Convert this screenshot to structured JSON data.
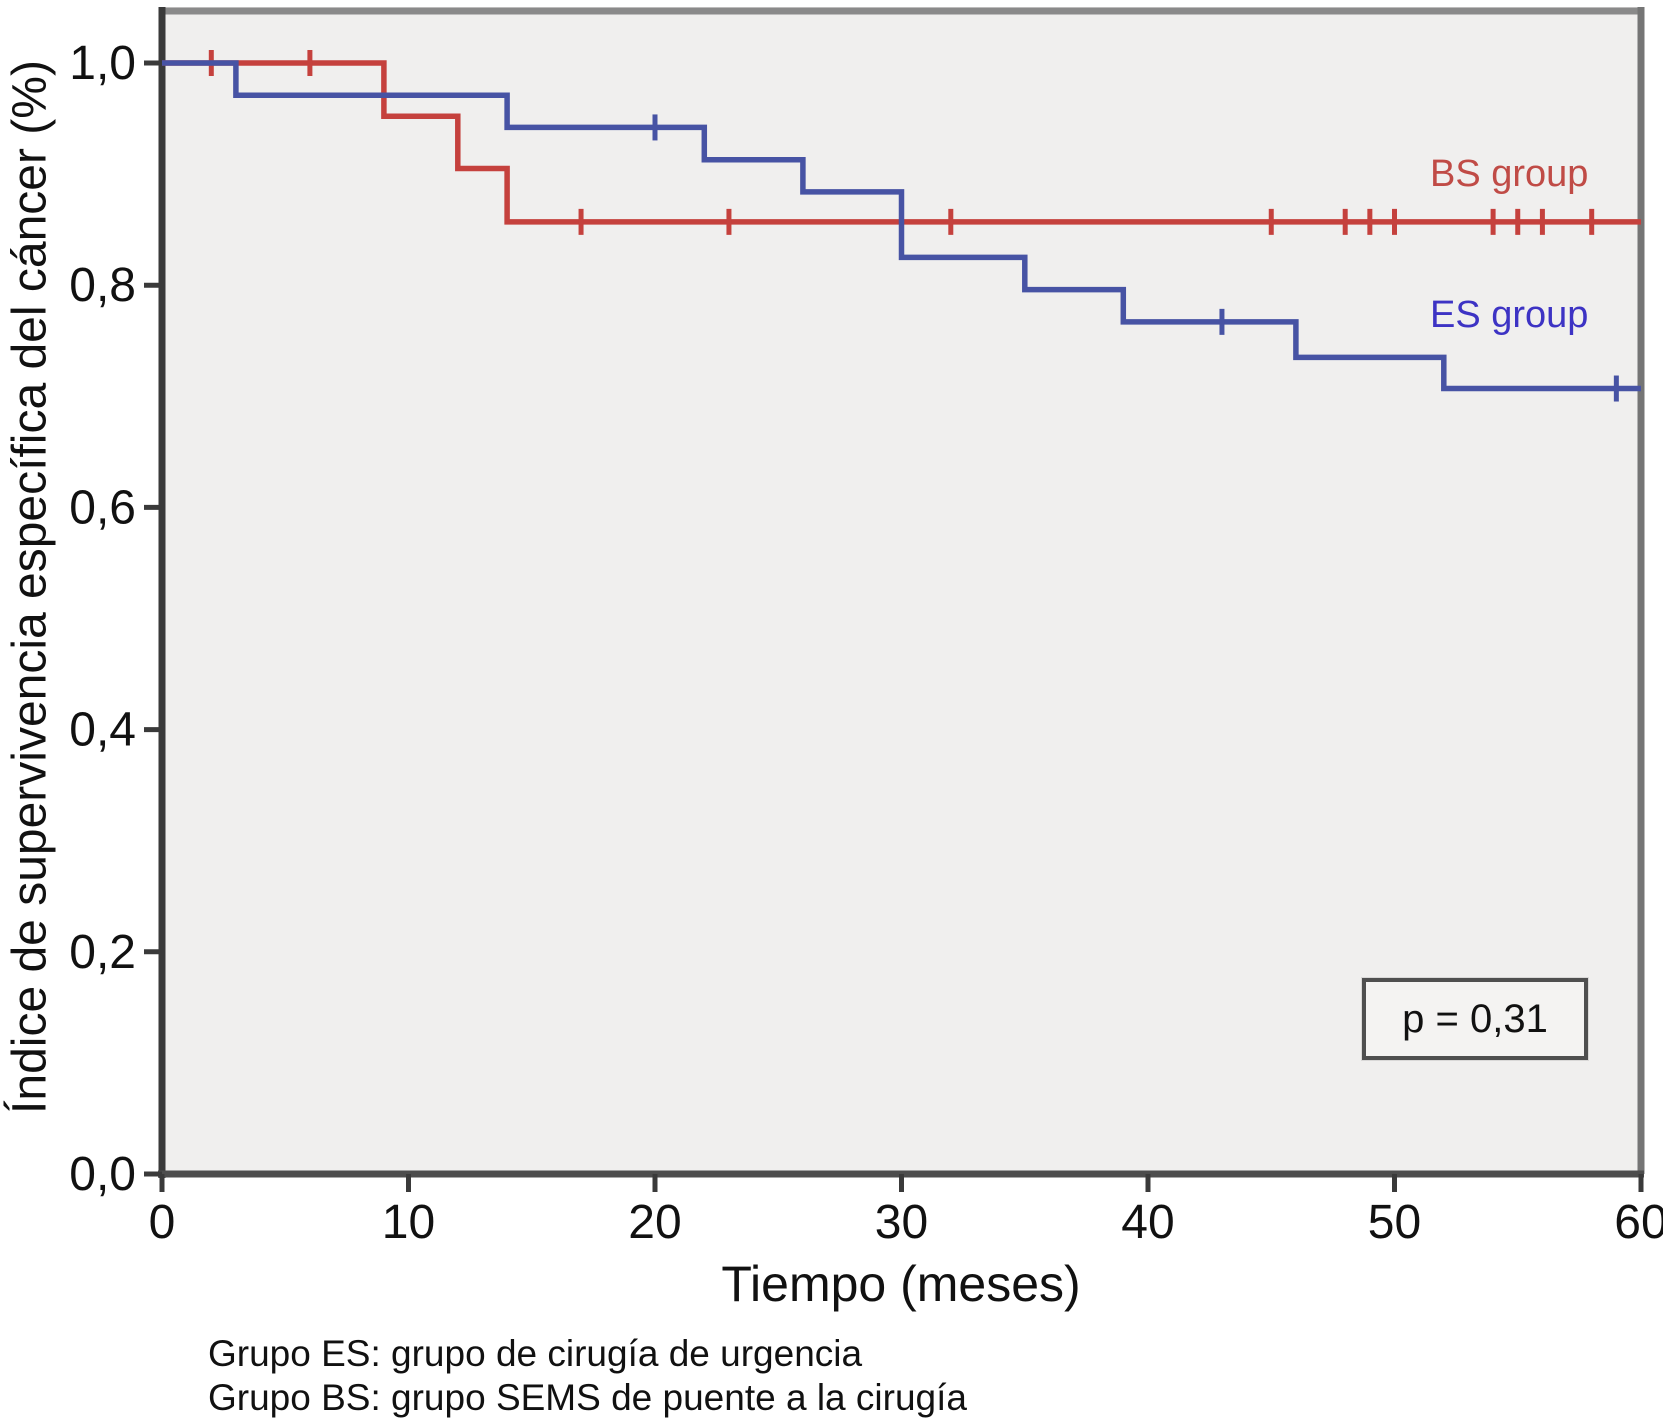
{
  "chart_data": {
    "type": "line",
    "subtype": "kaplan-meier-step-survival",
    "title": "",
    "xlabel": "Tiempo (meses)",
    "ylabel": "Índice de supervivencia específica del cáncer (%)",
    "xlim": [
      0,
      60
    ],
    "ylim": [
      0.0,
      1.0
    ],
    "grid": false,
    "legend_position": "inline-right",
    "plot_background": "#f0efee",
    "x_ticks": {
      "values": [
        0,
        10,
        20,
        30,
        40,
        50,
        60
      ],
      "labels": [
        "0",
        "10",
        "20",
        "30",
        "40",
        "50",
        "60"
      ]
    },
    "y_ticks": {
      "values": [
        0.0,
        0.2,
        0.4,
        0.6,
        0.8,
        1.0
      ],
      "labels": [
        "0,0",
        "0,2",
        "0,4",
        "0,6",
        "0,8",
        "1,0"
      ]
    },
    "series": [
      {
        "name": "BS group",
        "color": "#c5413d",
        "label_color": "#c04b46",
        "points": [
          [
            0,
            1.0
          ],
          [
            9,
            1.0
          ],
          [
            9,
            0.952
          ],
          [
            12,
            0.952
          ],
          [
            12,
            0.905
          ],
          [
            14,
            0.905
          ],
          [
            14,
            0.857
          ],
          [
            60,
            0.857
          ]
        ],
        "censors": [
          [
            2,
            1.0
          ],
          [
            6,
            1.0
          ],
          [
            17,
            0.857
          ],
          [
            23,
            0.857
          ],
          [
            32,
            0.857
          ],
          [
            45,
            0.857
          ],
          [
            48,
            0.857
          ],
          [
            49,
            0.857
          ],
          [
            50,
            0.857
          ],
          [
            54,
            0.857
          ],
          [
            55,
            0.857
          ],
          [
            56,
            0.857
          ],
          [
            58,
            0.857
          ]
        ]
      },
      {
        "name": "ES group",
        "color": "#4753a4",
        "label_color": "#3d33c4",
        "points": [
          [
            0,
            1.0
          ],
          [
            3,
            1.0
          ],
          [
            3,
            0.971
          ],
          [
            14,
            0.971
          ],
          [
            14,
            0.942
          ],
          [
            22,
            0.942
          ],
          [
            22,
            0.913
          ],
          [
            26,
            0.913
          ],
          [
            26,
            0.884
          ],
          [
            30,
            0.884
          ],
          [
            30,
            0.825
          ],
          [
            35,
            0.825
          ],
          [
            35,
            0.796
          ],
          [
            39,
            0.796
          ],
          [
            39,
            0.767
          ],
          [
            46,
            0.767
          ],
          [
            46,
            0.735
          ],
          [
            52,
            0.735
          ],
          [
            52,
            0.707
          ],
          [
            60,
            0.707
          ]
        ],
        "censors": [
          [
            20,
            0.942
          ],
          [
            43,
            0.767
          ],
          [
            59,
            0.707
          ]
        ]
      }
    ],
    "annotation": {
      "text": "p = 0,31"
    },
    "footnotes": [
      "Grupo ES: grupo de cirugía de urgencia",
      "Grupo BS: grupo SEMS de puente a la cirugía"
    ]
  }
}
